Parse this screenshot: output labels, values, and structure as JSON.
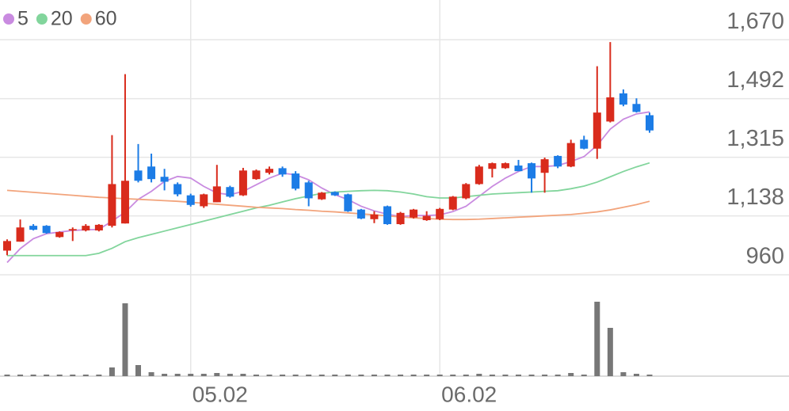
{
  "chart_data": {
    "type": "candlestick",
    "categories": [
      null,
      null,
      null,
      null,
      null,
      null,
      null,
      null,
      null,
      null,
      null,
      null,
      null,
      null,
      "05.02",
      null,
      null,
      null,
      null,
      null,
      null,
      null,
      null,
      null,
      null,
      null,
      null,
      null,
      null,
      null,
      null,
      null,
      null,
      "06.02",
      null,
      null,
      null,
      null,
      null,
      null,
      null,
      null,
      null,
      null,
      null,
      null,
      null,
      null,
      null,
      null
    ],
    "open": [
      1033,
      1060,
      1108,
      1108,
      1074,
      1094,
      1094,
      1094,
      1108,
      1115,
      1275,
      1287,
      1256,
      1234,
      1200,
      1167,
      1179,
      1225,
      1200,
      1249,
      1268,
      1282,
      1266,
      1239,
      1188,
      1210,
      1203,
      1157,
      1128,
      1167,
      1113,
      1133,
      1125,
      1128,
      1157,
      1191,
      1234,
      1280,
      1282,
      1290,
      1297,
      1268,
      1319,
      1287,
      1368,
      1341,
      1423,
      1508,
      1476,
      1442
    ],
    "high": [
      1067,
      1127,
      1113,
      1110,
      1091,
      1103,
      1113,
      1113,
      1382,
      1566,
      1355,
      1326,
      1280,
      1239,
      1205,
      1205,
      1292,
      1229,
      1283,
      1278,
      1287,
      1287,
      1273,
      1244,
      1210,
      1212,
      1205,
      1159,
      1152,
      1169,
      1150,
      1159,
      1152,
      1162,
      1198,
      1237,
      1292,
      1299,
      1299,
      1307,
      1299,
      1314,
      1321,
      1368,
      1380,
      1590,
      1663,
      1520,
      1493,
      1450
    ],
    "low": [
      1019,
      1060,
      1094,
      1084,
      1072,
      1062,
      1091,
      1091,
      1103,
      1115,
      1239,
      1239,
      1215,
      1197,
      1166,
      1162,
      1179,
      1193,
      1198,
      1247,
      1263,
      1256,
      1215,
      1167,
      1186,
      1198,
      1150,
      1128,
      1116,
      1111,
      1111,
      1130,
      1123,
      1125,
      1155,
      1188,
      1232,
      1254,
      1280,
      1273,
      1208,
      1208,
      1282,
      1285,
      1339,
      1310,
      1420,
      1469,
      1450,
      1389
    ],
    "close": [
      1062,
      1103,
      1096,
      1086,
      1089,
      1098,
      1108,
      1111,
      1234,
      1244,
      1244,
      1249,
      1241,
      1203,
      1171,
      1203,
      1227,
      1196,
      1275,
      1275,
      1280,
      1263,
      1220,
      1191,
      1208,
      1200,
      1152,
      1130,
      1142,
      1113,
      1147,
      1157,
      1138,
      1159,
      1196,
      1234,
      1287,
      1297,
      1297,
      1273,
      1251,
      1309,
      1287,
      1358,
      1341,
      1450,
      1496,
      1474,
      1452,
      1396
    ],
    "up_color": "#d92b1c",
    "down_color": "#1c7ce6",
    "series": [
      {
        "name": "5",
        "color": "#c98be0",
        "values": [
          997,
          1039,
          1069,
          1084,
          1089,
          1094,
          1096,
          1097,
          1122,
          1149,
          1188,
          1212,
          1242,
          1257,
          1252,
          1227,
          1207,
          1202,
          1212,
          1232,
          1252,
          1267,
          1262,
          1247,
          1222,
          1202,
          1187,
          1167,
          1153,
          1143,
          1136,
          1139,
          1139,
          1141,
          1151,
          1167,
          1197,
          1227,
          1252,
          1272,
          1287,
          1287,
          1290,
          1302,
          1317,
          1351,
          1400,
          1430,
          1446,
          1452
        ]
      },
      {
        "name": "20",
        "color": "#82d59c",
        "values": [
          1018,
          1018,
          1018,
          1018,
          1018,
          1018,
          1018,
          1025,
          1040,
          1060,
          1072,
          1082,
          1092,
          1102,
          1112,
          1122,
          1132,
          1142,
          1152,
          1162,
          1170,
          1180,
          1190,
          1198,
          1206,
          1210,
          1212,
          1214,
          1215,
          1214,
          1210,
          1204,
          1196,
          1192,
          1192,
          1196,
          1200,
          1204,
          1206,
          1208,
          1210,
          1212,
          1214,
          1220,
          1228,
          1240,
          1256,
          1272,
          1286,
          1298
        ]
      },
      {
        "name": "60",
        "color": "#f2a47c",
        "values": [
          1215,
          1212,
          1209,
          1206,
          1203,
          1200,
          1197,
          1194,
          1192,
          1190,
          1188,
          1186,
          1184,
          1182,
          1179,
          1176,
          1173,
          1170,
          1167,
          1164,
          1162,
          1160,
          1157,
          1155,
          1152,
          1150,
          1147,
          1144,
          1141,
          1138,
          1135,
          1132,
          1130,
          1128,
          1127,
          1127,
          1128,
          1130,
          1132,
          1134,
          1136,
          1138,
          1140,
          1142,
          1146,
          1150,
          1156,
          1164,
          1172,
          1182
        ]
      }
    ],
    "ylim": [
      960,
      1790
    ],
    "yticks": [
      {
        "value": 960,
        "label": "960"
      },
      {
        "value": 1138,
        "label": "1,138"
      },
      {
        "value": 1315,
        "label": "1,315"
      },
      {
        "value": 1492,
        "label": "1,492"
      },
      {
        "value": 1670,
        "label": "1,670"
      }
    ],
    "grid": true,
    "volume": {
      "color": "#777777",
      "ylim": [
        0,
        128
      ],
      "values": [
        2,
        2,
        2,
        2,
        2,
        2,
        2,
        2,
        11,
        92,
        14,
        5,
        3,
        3,
        3,
        3,
        4,
        3,
        3,
        2,
        2,
        2,
        2,
        2,
        2,
        2,
        2,
        2,
        2,
        2,
        2,
        2,
        2,
        2,
        2,
        2,
        3,
        2,
        2,
        2,
        2,
        2,
        2,
        4,
        2,
        94,
        61,
        5,
        3,
        2
      ]
    }
  }
}
